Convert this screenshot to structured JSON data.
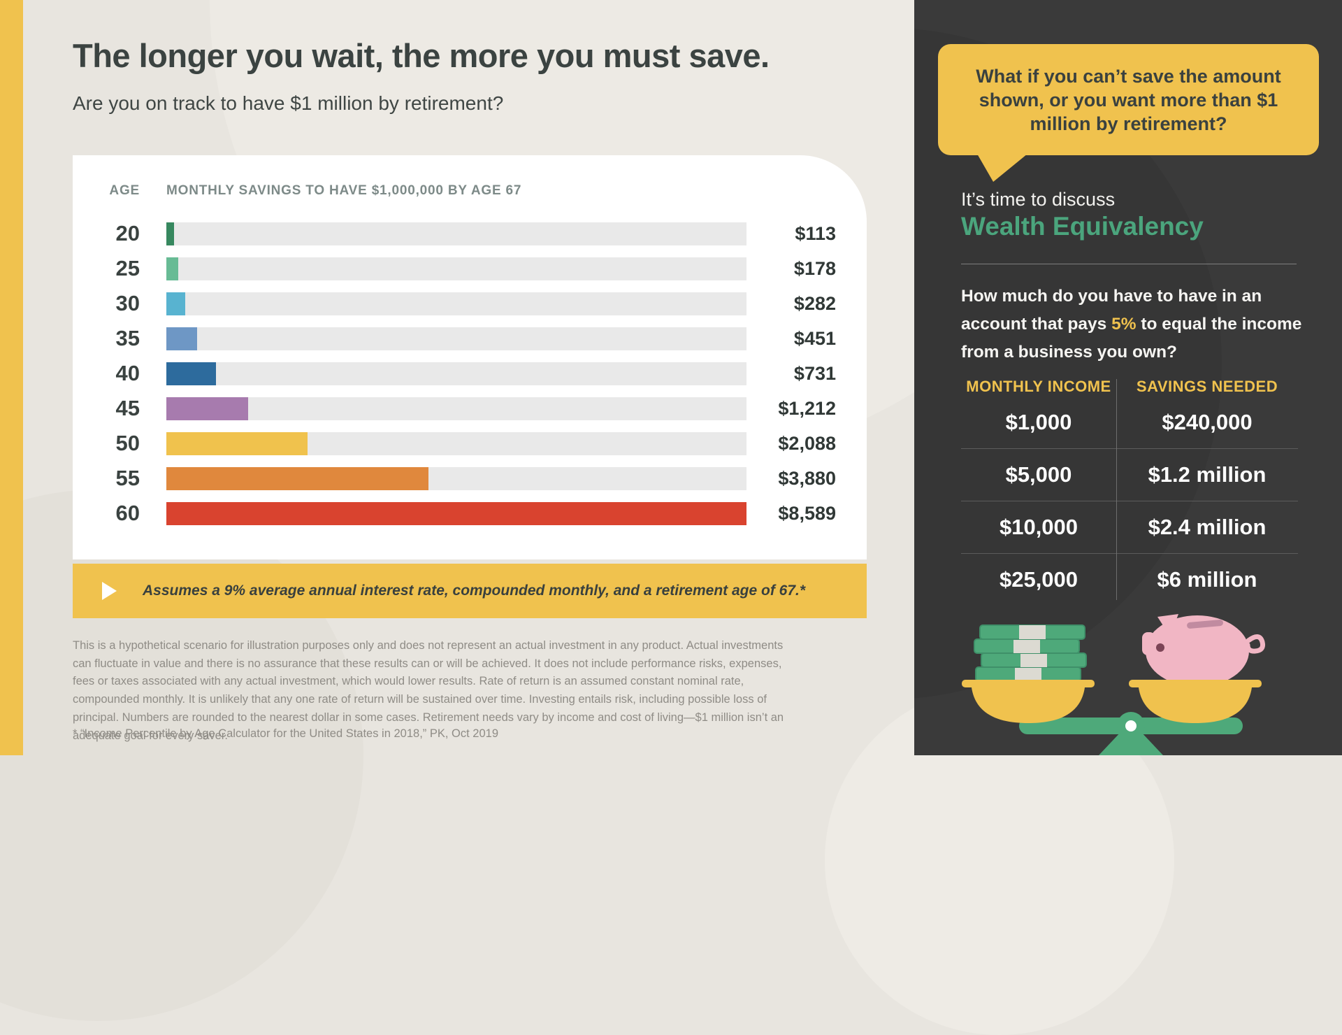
{
  "page": {
    "title": "The longer you wait, the more you must save.",
    "subtitle": "Are you on track to have $1 million by retirement?"
  },
  "chart": {
    "age_header": "AGE",
    "savings_header": "MONTHLY SAVINGS TO HAVE $1,000,000 BY AGE 67",
    "note": "Assumes a 9% average annual interest rate, compounded monthly, and a retirement age of 67.*"
  },
  "chart_data": {
    "type": "bar",
    "orientation": "horizontal",
    "title": "MONTHLY SAVINGS TO HAVE $1,000,000 BY AGE 67",
    "ylabel": "AGE",
    "xlabel": "Monthly savings ($)",
    "xlim": [
      0,
      8589
    ],
    "grid": false,
    "categories": [
      "20",
      "25",
      "30",
      "35",
      "40",
      "45",
      "50",
      "55",
      "60"
    ],
    "values": [
      113,
      178,
      282,
      451,
      731,
      1212,
      2088,
      3880,
      8589
    ],
    "value_labels": [
      "$113",
      "$178",
      "$282",
      "$451",
      "$731",
      "$1,212",
      "$2,088",
      "$3,880",
      "$8,589"
    ],
    "bar_colors": [
      "#37885f",
      "#68bb95",
      "#58b3d0",
      "#6e97c5",
      "#2d6b9d",
      "#a77bae",
      "#f0c24d",
      "#e0883d",
      "#d9432f"
    ],
    "track_color": "#e9e9e9"
  },
  "disclaimer": "This is a hypothetical scenario for illustration purposes only and does not represent an actual investment in any product. Actual investments can fluctuate in value and there is no assurance that these results can or will be achieved. It does not include performance risks, expenses, fees or taxes associated with any actual investment, which would lower results. Rate of return is an assumed constant nominal rate, compounded monthly. It is unlikely that any one rate of return will be sustained over time. Investing entails risk, including possible loss of principal. Numbers are rounded to the nearest dollar in some cases. Retirement needs vary by income and cost of living—$1 million isn’t an adequate goal for every saver.",
  "footnote": "* “Income Percentile by Age Calculator for the United States in 2018,” PK, Oct 2019",
  "sidebar": {
    "bubble": "What if you can’t save the amount shown, or you want more than $1 million by retirement?",
    "intro": "It’s time to discuss",
    "heading": "Wealth Equivalency",
    "question_pre": "How much do you have to have in an account that pays ",
    "question_highlight": "5%",
    "question_post": " to equal the income from a business you own?",
    "table": {
      "col1_header": "MONTHLY INCOME",
      "col2_header": "SAVINGS NEEDED",
      "rows": [
        {
          "income": "$1,000",
          "savings": "$240,000"
        },
        {
          "income": "$5,000",
          "savings": "$1.2 million"
        },
        {
          "income": "$10,000",
          "savings": "$2.4 million"
        },
        {
          "income": "$25,000",
          "savings": "$6 million"
        }
      ]
    },
    "illustration": "balance-scale-cash-vs-piggy-bank"
  },
  "colors": {
    "accent_yellow": "#f0c24e",
    "background_beige": "#e8e5df",
    "sidebar_dark": "#3a3a3a",
    "heading_green": "#4ba57d",
    "text_dark": "#3b4341",
    "text_gray": "#8f8c86",
    "card_white": "#ffffff"
  }
}
